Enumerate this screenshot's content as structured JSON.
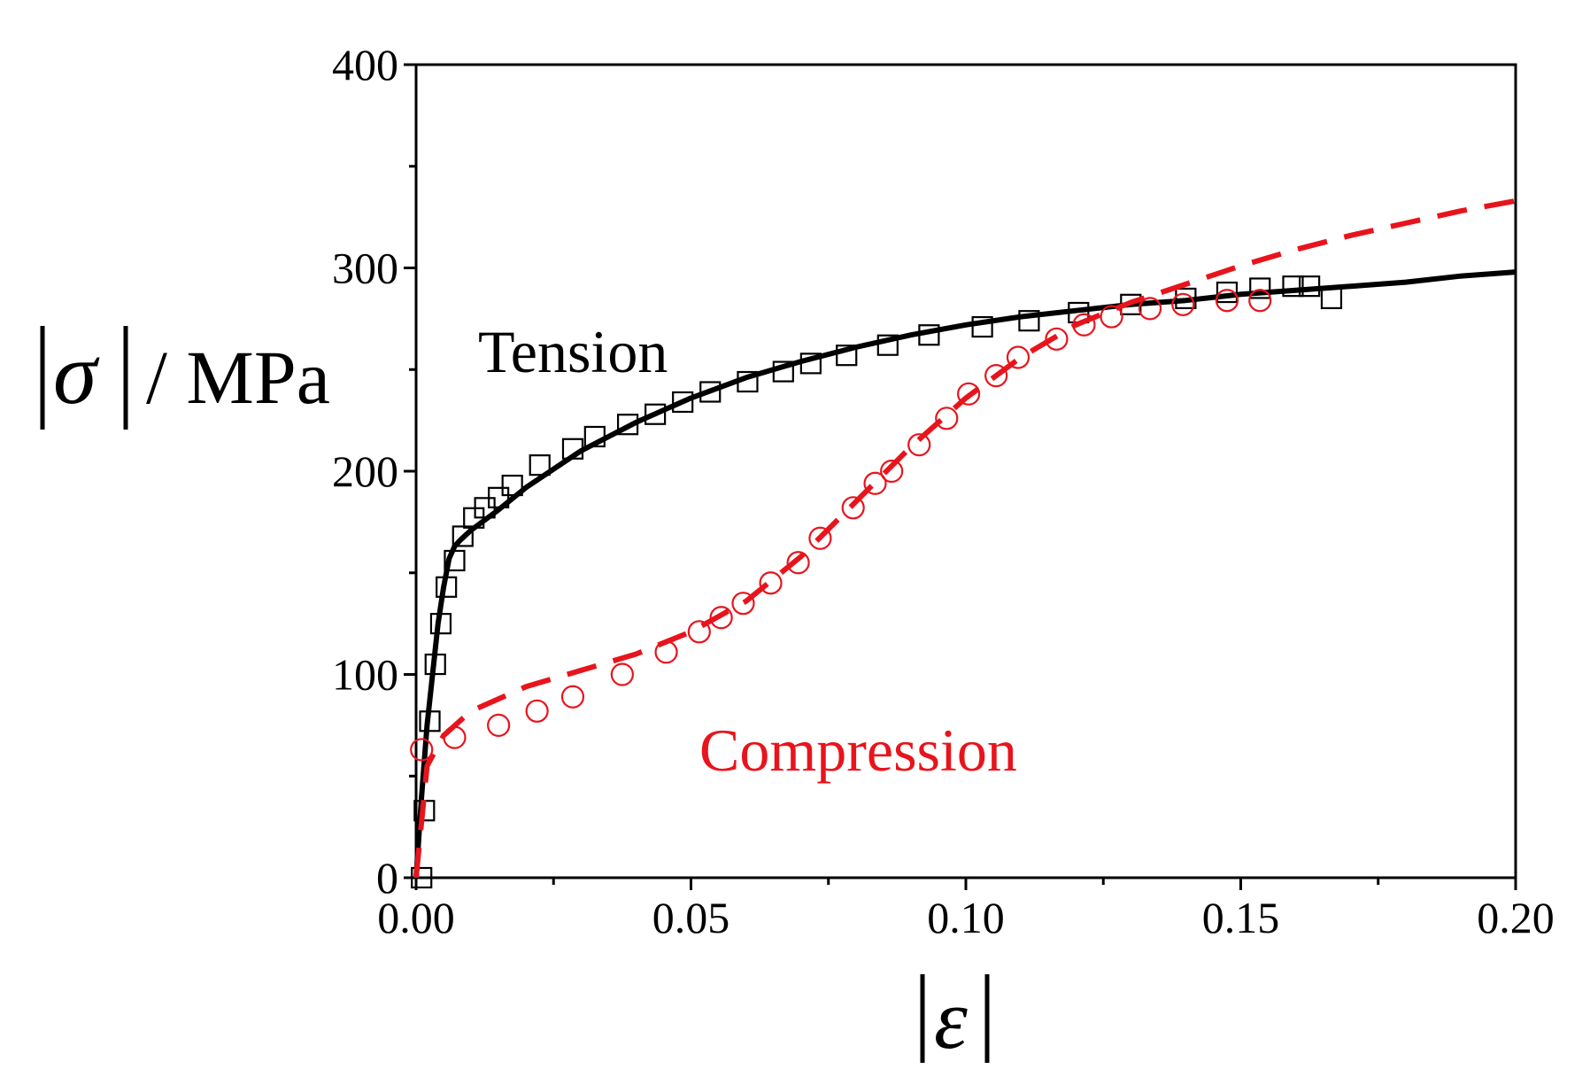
{
  "chart_data": {
    "type": "line",
    "title": "",
    "xlabel": "|ε|",
    "ylabel": "|σ| / MPa",
    "xlabel_symbol": "ε",
    "ylabel_symbol": "σ",
    "ylabel_unit": "/ MPa",
    "xlim": [
      0,
      0.2
    ],
    "ylim": [
      0,
      400
    ],
    "xticks": [
      0,
      0.05,
      0.1,
      0.15,
      0.2
    ],
    "xtick_labels": [
      "0.00",
      "0.05",
      "0.10",
      "0.15",
      "0.20"
    ],
    "yticks": [
      0,
      100,
      200,
      300,
      400
    ],
    "ytick_labels": [
      "0",
      "100",
      "200",
      "300",
      "400"
    ],
    "grid": false,
    "annotations": [
      {
        "text": "Tension",
        "color": "#000000"
      },
      {
        "text": "Compression",
        "color": "#e8141c"
      }
    ],
    "series": [
      {
        "name": "Tension (experiment)",
        "kind": "markers",
        "marker": "square",
        "color": "#000000",
        "x": [
          0.001,
          0.0015,
          0.0025,
          0.0035,
          0.0045,
          0.0055,
          0.007,
          0.0085,
          0.0105,
          0.0125,
          0.015,
          0.0175,
          0.0225,
          0.0285,
          0.0325,
          0.0385,
          0.0435,
          0.0485,
          0.0535,
          0.0603,
          0.0668,
          0.0718,
          0.0783,
          0.0858,
          0.0933,
          0.103,
          0.1115,
          0.1205,
          0.13,
          0.14,
          0.1475,
          0.1535,
          0.1595,
          0.1625,
          0.1665
        ],
        "y": [
          0,
          33,
          77,
          105,
          125,
          143,
          156,
          168,
          177,
          182,
          187,
          193,
          203,
          211,
          217,
          223,
          228,
          234,
          239,
          244,
          249,
          253,
          257,
          262,
          267,
          271,
          274,
          278,
          282,
          285,
          288,
          290,
          291,
          291,
          285
        ]
      },
      {
        "name": "Tension (fit)",
        "kind": "line",
        "style": "solid",
        "color": "#000000",
        "x": [
          0,
          0.001,
          0.002,
          0.003,
          0.004,
          0.005,
          0.006,
          0.007,
          0.008,
          0.01,
          0.015,
          0.02,
          0.03,
          0.04,
          0.05,
          0.06,
          0.07,
          0.08,
          0.09,
          0.1,
          0.11,
          0.12,
          0.13,
          0.14,
          0.15,
          0.16,
          0.17,
          0.18,
          0.19,
          0.2
        ],
        "y": [
          0,
          40,
          75,
          100,
          125,
          143,
          157,
          163,
          166,
          171,
          181,
          192,
          210,
          224,
          236,
          246,
          254,
          261,
          267,
          272,
          276,
          279,
          282,
          284,
          287,
          289,
          291,
          293,
          296,
          298
        ]
      },
      {
        "name": "Compression (experiment)",
        "kind": "markers",
        "marker": "circle",
        "color": "#e8141c",
        "x": [
          0.001,
          0.007,
          0.015,
          0.022,
          0.0285,
          0.0375,
          0.0455,
          0.0515,
          0.0555,
          0.0595,
          0.0645,
          0.0695,
          0.0735,
          0.0795,
          0.0835,
          0.0865,
          0.0915,
          0.0965,
          0.1005,
          0.1055,
          0.1095,
          0.1165,
          0.1215,
          0.1265,
          0.1335,
          0.1395,
          0.1475,
          0.1535
        ],
        "y": [
          63,
          69,
          75,
          82,
          89,
          100,
          111,
          121,
          128,
          135,
          145,
          155,
          167,
          182,
          194,
          200,
          213,
          226,
          238,
          247,
          256,
          265,
          272,
          276,
          280,
          282,
          284,
          284
        ]
      },
      {
        "name": "Compression (fit)",
        "kind": "line",
        "style": "dashed",
        "color": "#e8141c",
        "x": [
          0,
          0.002,
          0.005,
          0.01,
          0.02,
          0.03,
          0.04,
          0.05,
          0.06,
          0.07,
          0.08,
          0.09,
          0.1,
          0.11,
          0.12,
          0.13,
          0.14,
          0.15,
          0.16,
          0.17,
          0.18,
          0.19,
          0.2
        ],
        "y": [
          0,
          55,
          70,
          82,
          94,
          102,
          110,
          121,
          136,
          158,
          185,
          212,
          236,
          256,
          272,
          283,
          292,
          301,
          309,
          316,
          322,
          328,
          333
        ]
      }
    ]
  }
}
